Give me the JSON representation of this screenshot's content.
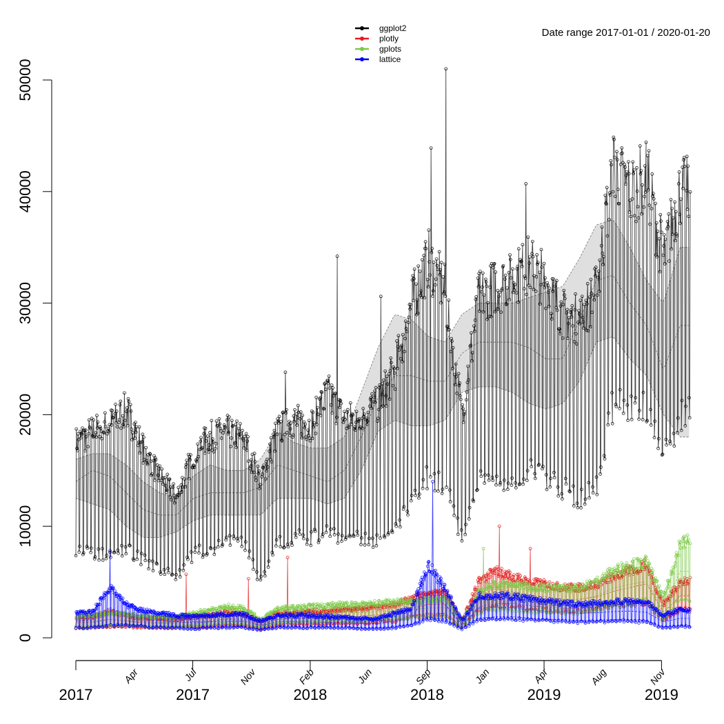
{
  "chart_data": {
    "type": "line",
    "title": "",
    "annotation": "Date range  2017-01-01 / 2020-01-20",
    "date_start": "2017-01-01",
    "date_end": "2020-01-20",
    "xlabel": "",
    "ylabel": "",
    "ylim": [
      0,
      50000
    ],
    "y_ticks": [
      0,
      10000,
      20000,
      30000,
      40000,
      50000
    ],
    "grid": false,
    "legend_position": "top-center",
    "x_ticks": [
      "2017-01-01",
      "2017-08-01",
      "2018-03-02",
      "2018-09-30",
      "2019-04-30",
      "2019-11-29"
    ],
    "x_month_labels": [
      {
        "date": "2017-04-17",
        "label": "Apr"
      },
      {
        "date": "2017-08-01",
        "label": "Jul"
      },
      {
        "date": "2017-11-16",
        "label": "Nov"
      },
      {
        "date": "2018-03-02",
        "label": "Feb"
      },
      {
        "date": "2018-06-15",
        "label": "Jun"
      },
      {
        "date": "2018-09-30",
        "label": "Sep"
      },
      {
        "date": "2019-01-14",
        "label": "Jan"
      },
      {
        "date": "2019-04-30",
        "label": "Apr"
      },
      {
        "date": "2019-08-14",
        "label": "Aug"
      },
      {
        "date": "2019-11-29",
        "label": "Nov"
      }
    ],
    "x_year_labels": [
      {
        "date": "2017-01-01",
        "label": "2017"
      },
      {
        "date": "2017-08-01",
        "label": "2017"
      },
      {
        "date": "2018-03-02",
        "label": "2018"
      },
      {
        "date": "2018-09-30",
        "label": "2018"
      },
      {
        "date": "2019-04-30",
        "label": "2019"
      },
      {
        "date": "2019-11-29",
        "label": "2019"
      }
    ],
    "monthly_resolution_start": "2017-01",
    "series": [
      {
        "name": "ggplot2",
        "color": "#000000",
        "weekday_peak": [
          17500,
          18500,
          19000,
          20500,
          17000,
          14500,
          12500,
          16500,
          18000,
          18500,
          18000,
          14000,
          18500,
          19500,
          19000,
          22000,
          19500,
          20000,
          21000,
          24000,
          30000,
          34000,
          31000,
          20000,
          30500,
          31500,
          32000,
          33500,
          32000,
          29000,
          28500,
          31000,
          42500,
          40000,
          41500,
          34000,
          40000
        ],
        "weekend_low": [
          8000,
          7500,
          7500,
          8000,
          7000,
          6000,
          5500,
          7500,
          8000,
          8500,
          8500,
          5000,
          8500,
          9000,
          9000,
          9500,
          9000,
          9000,
          8500,
          9500,
          12500,
          14500,
          13500,
          9000,
          14000,
          14000,
          14500,
          15000,
          14500,
          13500,
          12500,
          13500,
          21000,
          20500,
          20500,
          16000,
          20000
        ],
        "band_high": [
          16000,
          16500,
          16500,
          15500,
          14000,
          13000,
          12500,
          14500,
          15500,
          15000,
          15000,
          16000,
          18500,
          17500,
          17000,
          17000,
          18000,
          22000,
          26000,
          29000,
          28500,
          27000,
          26500,
          29000,
          30000,
          30000,
          30000,
          30500,
          31000,
          31500,
          34000,
          37000,
          37500,
          35000,
          32000,
          30000,
          35000
        ],
        "band_mid": [
          14000,
          15000,
          14500,
          13000,
          11500,
          11000,
          11000,
          12500,
          13000,
          13000,
          13000,
          13500,
          15500,
          15000,
          14500,
          14000,
          15000,
          18000,
          21500,
          23500,
          23500,
          23000,
          23000,
          25500,
          26500,
          26500,
          26500,
          26000,
          25000,
          25000,
          28500,
          32000,
          32500,
          30000,
          28000,
          24000,
          28000
        ],
        "band_low": [
          12500,
          12000,
          11500,
          10000,
          9000,
          9000,
          9500,
          10500,
          11000,
          11000,
          11000,
          11000,
          12500,
          12500,
          12500,
          12000,
          12500,
          15000,
          18500,
          19500,
          19000,
          19000,
          19500,
          22000,
          22500,
          22500,
          22000,
          21000,
          20500,
          21000,
          23000,
          26500,
          27000,
          25000,
          23500,
          20000,
          18000
        ],
        "spikes": [
          {
            "date": "2018-04-20",
            "value": 34200
          },
          {
            "date": "2018-10-07",
            "value": 43900
          },
          {
            "date": "2018-11-03",
            "value": 51000
          },
          {
            "date": "2019-03-28",
            "value": 40700
          },
          {
            "date": "2018-01-16",
            "value": 23800
          },
          {
            "date": "2018-07-08",
            "value": 30600
          }
        ]
      },
      {
        "name": "plotly",
        "color": "#e41a1c",
        "weekday_peak": [
          1800,
          1900,
          2300,
          2000,
          1800,
          1700,
          1700,
          1900,
          2000,
          2300,
          2200,
          1500,
          2200,
          2300,
          2300,
          2400,
          2500,
          2600,
          2700,
          3000,
          3500,
          4000,
          4000,
          1500,
          5000,
          6000,
          5500,
          5000,
          4800,
          4500,
          4500,
          4800,
          5500,
          6000,
          6500,
          3000,
          5000
        ],
        "weekend_low": [
          900,
          900,
          1000,
          1000,
          900,
          900,
          900,
          1000,
          1000,
          1100,
          1100,
          800,
          1100,
          1200,
          1200,
          1200,
          1300,
          1300,
          1400,
          1500,
          1800,
          2000,
          2000,
          900,
          2500,
          2800,
          2800,
          2600,
          2500,
          2400,
          2400,
          2500,
          2800,
          3000,
          3200,
          1500,
          2500
        ],
        "spikes": [
          {
            "date": "2017-07-20",
            "value": 5700
          },
          {
            "date": "2017-11-10",
            "value": 5300
          },
          {
            "date": "2018-01-20",
            "value": 7200
          },
          {
            "date": "2019-02-08",
            "value": 10000
          },
          {
            "date": "2019-04-05",
            "value": 8000
          }
        ]
      },
      {
        "name": "gplots",
        "color": "#7ac943",
        "weekday_peak": [
          1900,
          2000,
          2200,
          2100,
          1900,
          1800,
          1800,
          2200,
          2500,
          2800,
          2700,
          1600,
          2600,
          2700,
          2800,
          2900,
          3000,
          3000,
          3100,
          3200,
          3300,
          3400,
          3500,
          1500,
          4200,
          4800,
          4800,
          4600,
          4500,
          4400,
          4500,
          5000,
          6000,
          6500,
          6800,
          3500,
          8500
        ],
        "weekend_low": [
          1000,
          1000,
          1100,
          1100,
          1000,
          1000,
          1000,
          1100,
          1200,
          1300,
          1300,
          900,
          1300,
          1400,
          1400,
          1500,
          1500,
          1500,
          1600,
          1700,
          1800,
          1900,
          1900,
          900,
          2300,
          2500,
          2500,
          2400,
          2400,
          2300,
          2300,
          2500,
          2900,
          3100,
          3300,
          1500,
          3500
        ],
        "spikes": [
          {
            "date": "2019-01-10",
            "value": 8000
          },
          {
            "date": "2020-01-15",
            "value": 9200
          }
        ]
      },
      {
        "name": "lattice",
        "color": "#0000ff",
        "weekday_peak": [
          2200,
          2300,
          4500,
          3000,
          2400,
          2200,
          2000,
          1900,
          2000,
          2100,
          2100,
          1500,
          2000,
          2000,
          2000,
          1900,
          1800,
          1800,
          1700,
          2200,
          2600,
          6500,
          4500,
          1500,
          3800,
          3800,
          3700,
          3500,
          3300,
          3100,
          3000,
          3100,
          3200,
          3300,
          3200,
          2000,
          2500
        ],
        "weekend_low": [
          900,
          900,
          1100,
          1100,
          1000,
          900,
          900,
          800,
          900,
          900,
          900,
          700,
          900,
          900,
          900,
          900,
          900,
          800,
          800,
          900,
          1100,
          1700,
          1500,
          800,
          1600,
          1700,
          1700,
          1600,
          1500,
          1500,
          1400,
          1400,
          1500,
          1500,
          1400,
          900,
          1000
        ],
        "spikes": [
          {
            "date": "2017-03-04",
            "value": 7800
          },
          {
            "date": "2018-10-10",
            "value": 14000
          }
        ]
      }
    ]
  }
}
